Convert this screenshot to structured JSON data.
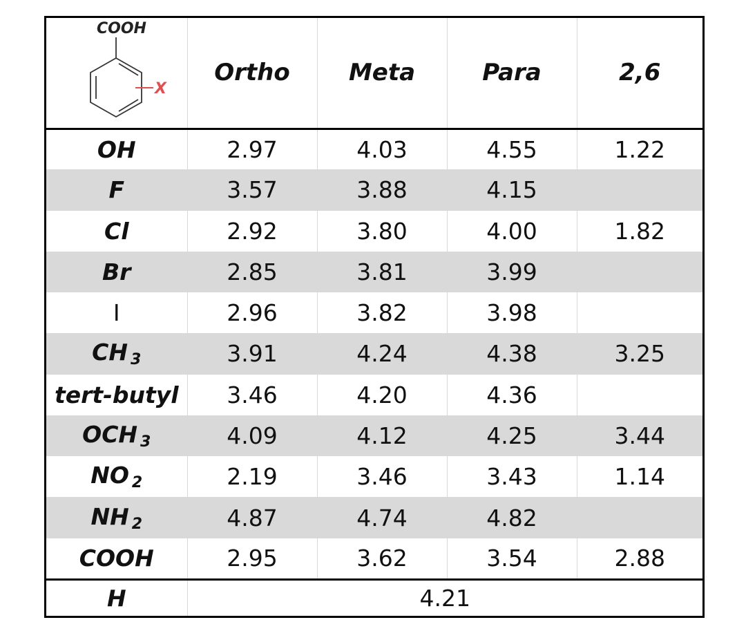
{
  "structure": {
    "top_group": "COOH",
    "substituent": "X",
    "bond_color": "#e05050"
  },
  "columns": [
    "Ortho",
    "Meta",
    "Para",
    "2,6"
  ],
  "rows": [
    {
      "label": "OH",
      "sub": "",
      "values": [
        "2.97",
        "4.03",
        "4.55",
        "1.22"
      ]
    },
    {
      "label": "F",
      "sub": "",
      "values": [
        "3.57",
        "3.88",
        "4.15",
        ""
      ]
    },
    {
      "label": "Cl",
      "sub": "",
      "values": [
        "2.92",
        "3.80",
        "4.00",
        "1.82"
      ]
    },
    {
      "label": "Br",
      "sub": "",
      "values": [
        "2.85",
        "3.81",
        "3.99",
        ""
      ]
    },
    {
      "label": "I",
      "sub": "",
      "plain": true,
      "values": [
        "2.96",
        "3.82",
        "3.98",
        ""
      ]
    },
    {
      "label": "CH",
      "sub": "3",
      "values": [
        "3.91",
        "4.24",
        "4.38",
        "3.25"
      ]
    },
    {
      "label": "tert-butyl",
      "sub": "",
      "values": [
        "3.46",
        "4.20",
        "4.36",
        ""
      ]
    },
    {
      "label": "OCH",
      "sub": "3",
      "values": [
        "4.09",
        "4.12",
        "4.25",
        "3.44"
      ]
    },
    {
      "label": "NO",
      "sub": "2",
      "values": [
        "2.19",
        "3.46",
        "3.43",
        "1.14"
      ]
    },
    {
      "label": "NH",
      "sub": "2",
      "values": [
        "4.87",
        "4.74",
        "4.82",
        ""
      ]
    },
    {
      "label": "COOH",
      "sub": "",
      "values": [
        "2.95",
        "3.62",
        "3.54",
        "2.88"
      ]
    }
  ],
  "footer": {
    "label": "H",
    "value": "4.21"
  },
  "colors": {
    "shade": "#d9d9d9",
    "border": "#000000"
  }
}
